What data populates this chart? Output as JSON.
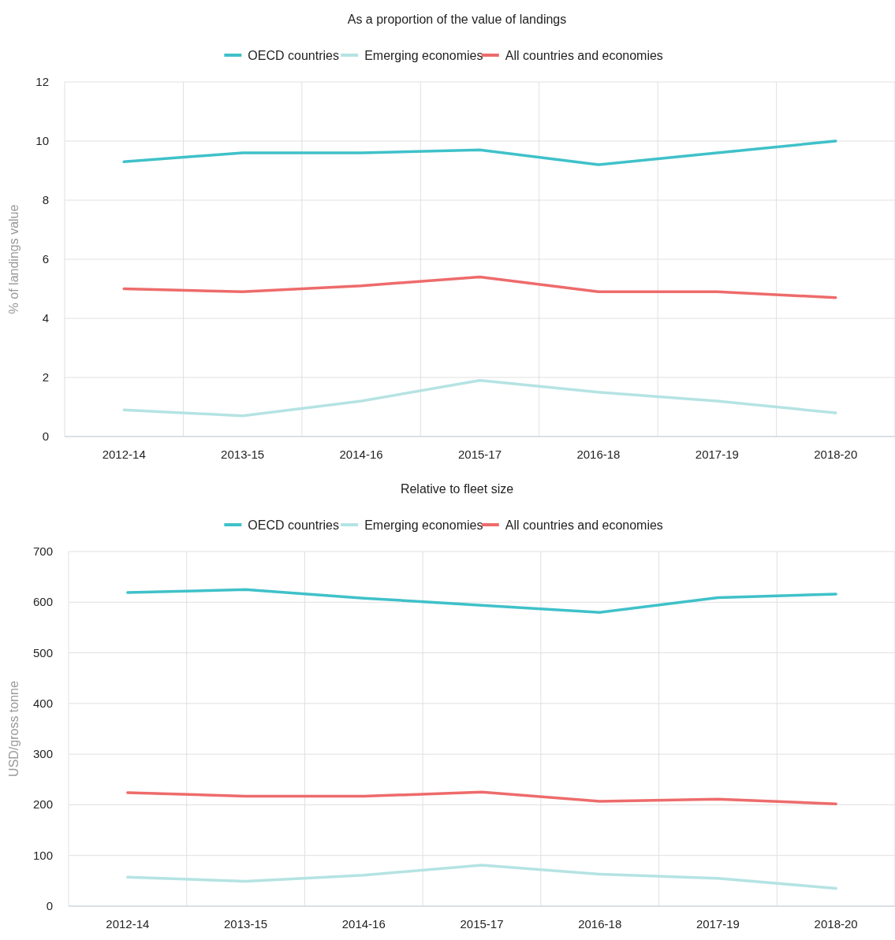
{
  "chart_data": [
    {
      "type": "line",
      "title": "As a proportion of the value of landings",
      "ylabel": "% of landings value",
      "categories": [
        "2012-14",
        "2013-15",
        "2014-16",
        "2015-17",
        "2016-18",
        "2017-19",
        "2018-20"
      ],
      "series": [
        {
          "name": "OECD countries",
          "color": "#3fc1c9",
          "values": [
            9.3,
            9.6,
            9.6,
            9.7,
            9.2,
            9.6,
            10.0
          ]
        },
        {
          "name": "Emerging economies",
          "color": "#b5e3e3",
          "values": [
            0.9,
            0.7,
            1.2,
            1.9,
            1.5,
            1.2,
            0.8
          ]
        },
        {
          "name": "All countries and economies",
          "color": "#ee6b6b",
          "values": [
            5.0,
            4.9,
            5.1,
            5.4,
            4.9,
            4.9,
            4.7
          ]
        }
      ],
      "ylim": [
        0,
        12
      ],
      "yticks": [
        0,
        2,
        4,
        6,
        8,
        10,
        12
      ],
      "grid": true,
      "legend": "top",
      "marker": "none",
      "line_style": "solid"
    },
    {
      "type": "line",
      "title": "Relative to fleet size",
      "ylabel": "USD/gross tonne",
      "categories": [
        "2012-14",
        "2013-15",
        "2014-16",
        "2015-17",
        "2016-18",
        "2017-19",
        "2018-20"
      ],
      "series": [
        {
          "name": "OECD countries",
          "color": "#3fc1c9",
          "values": [
            619,
            625,
            608,
            594,
            580,
            609,
            616
          ]
        },
        {
          "name": "Emerging economies",
          "color": "#b5e3e3",
          "values": [
            57,
            49,
            61,
            81,
            63,
            55,
            35
          ]
        },
        {
          "name": "All countries and economies",
          "color": "#ee6b6b",
          "values": [
            224,
            217,
            217,
            225,
            207,
            211,
            202
          ]
        }
      ],
      "ylim": [
        0,
        700
      ],
      "yticks": [
        0,
        100,
        200,
        300,
        400,
        500,
        600,
        700
      ],
      "grid": true,
      "legend": "top",
      "marker": "none",
      "line_style": "solid"
    }
  ]
}
